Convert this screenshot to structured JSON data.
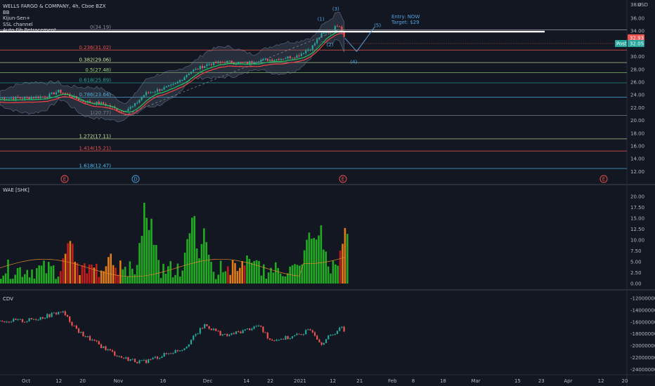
{
  "header": {
    "title": "WELLS FARGO & COMPANY, 4h, Cboe BZX",
    "indicators": [
      "BB",
      "Kijun-Sen+",
      "SSL channel",
      "Auto Fib Retracement"
    ],
    "currency": "USD"
  },
  "annotation": {
    "entry": "Entry: NOW",
    "target": "Target: $29"
  },
  "waves": [
    "(1)",
    "(2)",
    "(3)",
    "(4)",
    "(5)"
  ],
  "price_tags": {
    "current": "32.93",
    "post_label": "Post",
    "post_value": "32.05"
  },
  "panels": {
    "wae_label": "WAE [SHK]",
    "cdv_label": "CDV"
  },
  "event_markers": [
    "E",
    "D",
    "E",
    "E"
  ],
  "colors": {
    "bg": "#131722",
    "up": "#26a69a",
    "down": "#ef5350",
    "green": "#22ab22",
    "red": "#c21b1b",
    "orange": "#e07b18"
  },
  "chart_data": {
    "type": "candlestick",
    "title": "WELLS FARGO & COMPANY, 4h, Cboe BZX",
    "price_axis": {
      "ticks": [
        "36.00",
        "34.00",
        "32.00",
        "30.00",
        "28.00",
        "26.00",
        "24.00",
        "22.00",
        "20.00",
        "18.00",
        "16.00",
        "14.00",
        "12.00"
      ],
      "top_partial": "38.0",
      "currency": "USD"
    },
    "fib_levels": [
      {
        "label": "0(34.19)",
        "price": 34.19,
        "color": "#8a8f9a"
      },
      {
        "label": "0.236(31.02)",
        "price": 31.02,
        "color": "#ef5350"
      },
      {
        "label": "0.382(29.06)",
        "price": 29.06,
        "color": "#c8e6a0"
      },
      {
        "label": "0.5(27.48)",
        "price": 27.48,
        "color": "#9bd17a"
      },
      {
        "label": "0.618(25.89)",
        "price": 25.89,
        "color": "#26a69a"
      },
      {
        "label": "0.786(23.64)",
        "price": 23.64,
        "color": "#4fc3f7"
      },
      {
        "label": "1(20.77)",
        "price": 20.77,
        "color": "#8a8f9a"
      },
      {
        "label": "1.272(17.11)",
        "price": 17.11,
        "color": "#c8e6a0"
      },
      {
        "label": "1.414(15.21)",
        "price": 15.21,
        "color": "#ef5350"
      },
      {
        "label": "1.618(12.47)",
        "price": 12.47,
        "color": "#4fc3f7"
      }
    ],
    "resistance_line": 33.9,
    "price_path": [
      [
        "2020-10-01",
        23.5
      ],
      [
        "2020-10-08",
        23.8
      ],
      [
        "2020-10-12",
        24.6
      ],
      [
        "2020-10-15",
        24.0
      ],
      [
        "2020-10-20",
        23.0
      ],
      [
        "2020-10-27",
        22.6
      ],
      [
        "2020-11-02",
        21.4
      ],
      [
        "2020-11-06",
        22.2
      ],
      [
        "2020-11-10",
        24.2
      ],
      [
        "2020-11-16",
        25.0
      ],
      [
        "2020-11-20",
        25.6
      ],
      [
        "2020-11-25",
        27.6
      ],
      [
        "2020-12-01",
        28.8
      ],
      [
        "2020-12-07",
        29.2
      ],
      [
        "2020-12-14",
        29.0
      ],
      [
        "2020-12-18",
        29.4
      ],
      [
        "2020-12-24",
        29.6
      ],
      [
        "2020-12-31",
        30.1
      ],
      [
        "2021-01-05",
        31.5
      ],
      [
        "2021-01-08",
        33.4
      ],
      [
        "2021-01-12",
        34.2
      ],
      [
        "2021-01-14",
        35.2
      ],
      [
        "2021-01-16",
        32.9
      ]
    ],
    "projection": [
      [
        "2021-01-16",
        32.9
      ],
      [
        "2021-01-20",
        30.8
      ],
      [
        "2021-01-26",
        34.6
      ]
    ],
    "time_axis": [
      "Oct",
      "12",
      "20",
      "Nov",
      "16",
      "Dec",
      "14",
      "22",
      "2021",
      "12",
      "21",
      "Feb",
      "8",
      "18",
      "Mar",
      "15",
      "23",
      "Apr",
      "12",
      "20"
    ],
    "wae": {
      "label": "WAE [SHK]",
      "ticks": [
        "20.00",
        "17.50",
        "15.00",
        "12.50",
        "10.00",
        "7.50",
        "5.00",
        "2.50",
        "0.00"
      ],
      "ylim": [
        0,
        20.5
      ]
    },
    "cdv": {
      "label": "CDV",
      "ticks": [
        "-12000000.00",
        "-14000000.00",
        "-16000000.00",
        "-18000000.00",
        "-20000000.00",
        "-22000000.00",
        "-24000000.00"
      ],
      "path": [
        [
          "2020-10-01",
          -15.8
        ],
        [
          "2020-10-08",
          -15.0
        ],
        [
          "2020-10-13",
          -14.2
        ],
        [
          "2020-10-19",
          -17.8
        ],
        [
          "2020-10-26",
          -20.0
        ],
        [
          "2020-11-02",
          -22.0
        ],
        [
          "2020-11-09",
          -22.8
        ],
        [
          "2020-11-16",
          -21.6
        ],
        [
          "2020-11-23",
          -20.4
        ],
        [
          "2020-11-30",
          -16.5
        ],
        [
          "2020-12-07",
          -18.4
        ],
        [
          "2020-12-14",
          -17.3
        ],
        [
          "2020-12-18",
          -16.6
        ],
        [
          "2020-12-22",
          -19.0
        ],
        [
          "2020-12-29",
          -18.6
        ],
        [
          "2021-01-05",
          -17.3
        ],
        [
          "2021-01-08",
          -19.6
        ],
        [
          "2021-01-12",
          -18.0
        ],
        [
          "2021-01-15",
          -16.9
        ],
        [
          "2021-01-18",
          -19.3
        ]
      ]
    }
  }
}
